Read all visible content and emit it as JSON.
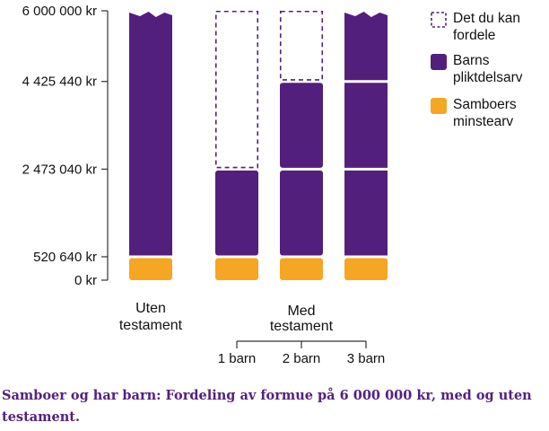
{
  "chart_data": {
    "type": "bar",
    "stacked": true,
    "y_ticks": [
      "6 000 000 kr",
      "4 425 440 kr",
      "2 473 040 kr",
      "520 640 kr",
      "0 kr"
    ],
    "y_tick_values": [
      6000000,
      4425440,
      2473040,
      520640,
      0
    ],
    "ylim": [
      0,
      6000000
    ],
    "groups": [
      {
        "label_lines": [
          "Uten",
          "testament"
        ],
        "categories": [
          ""
        ]
      },
      {
        "label_lines": [
          "Med",
          "testament"
        ],
        "categories": [
          "1 barn",
          "2 barn",
          "3 barn"
        ]
      }
    ],
    "bars": [
      {
        "group": 0,
        "label": "",
        "minstearv": 520640,
        "pliktdelsarv": 5479360,
        "fordele": 0,
        "broken_top": true
      },
      {
        "group": 1,
        "label": "1 barn",
        "minstearv": 520640,
        "pliktdelsarv": 1952400,
        "fordele": 3527000,
        "broken_top": false
      },
      {
        "group": 1,
        "label": "2 barn",
        "minstearv": 520640,
        "pliktdelsarv": 3904800,
        "fordele": 1574560,
        "broken_top": false
      },
      {
        "group": 1,
        "label": "3 barn",
        "minstearv": 520640,
        "pliktdelsarv": 5479360,
        "fordele": 0,
        "broken_top": true
      }
    ],
    "legend": [
      {
        "key": "fordele",
        "lines": [
          "Det du kan",
          "fordele"
        ],
        "style": "dashed"
      },
      {
        "key": "pliktdelsarv",
        "lines": [
          "Barns",
          "pliktdelsarv"
        ],
        "style": "filled"
      },
      {
        "key": "minstearv",
        "lines": [
          "Samboers",
          "minstearv"
        ],
        "style": "filled"
      }
    ],
    "legend_placement": "right",
    "colors": {
      "pliktdelsarv": "#531f7c",
      "minstearv": "#f5a623",
      "fordele": "#531f7c",
      "axis": "#333333"
    }
  },
  "caption": "Samboer og har barn: Fordeling av formue på 6 000 000 kr, med og uten testament."
}
